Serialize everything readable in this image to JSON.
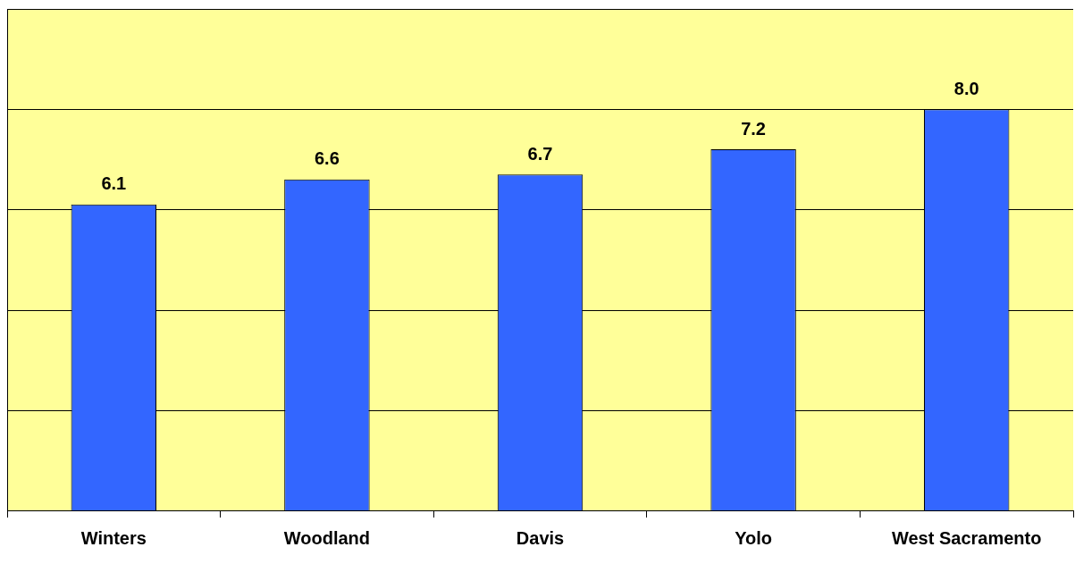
{
  "chart_data": {
    "type": "bar",
    "categories": [
      "Winters",
      "Woodland",
      "Davis",
      "Yolo",
      "West Sacramento"
    ],
    "values": [
      6.1,
      6.6,
      6.7,
      7.2,
      8.0
    ],
    "color": "#3366ff",
    "value_labels": [
      "6.1",
      "6.6",
      "6.7",
      "7.2",
      "8.0"
    ],
    "ylim": [
      0,
      10
    ],
    "yticks": [
      {
        "value": 0,
        "label": null
      },
      {
        "value": 2,
        "label": null
      },
      {
        "value": 4,
        "label": null
      },
      {
        "value": 6,
        "label": null
      },
      {
        "value": 8,
        "label": null
      },
      {
        "value": 10,
        "label": null
      }
    ],
    "grid": "y",
    "legend": false,
    "tick_labels": "x"
  }
}
